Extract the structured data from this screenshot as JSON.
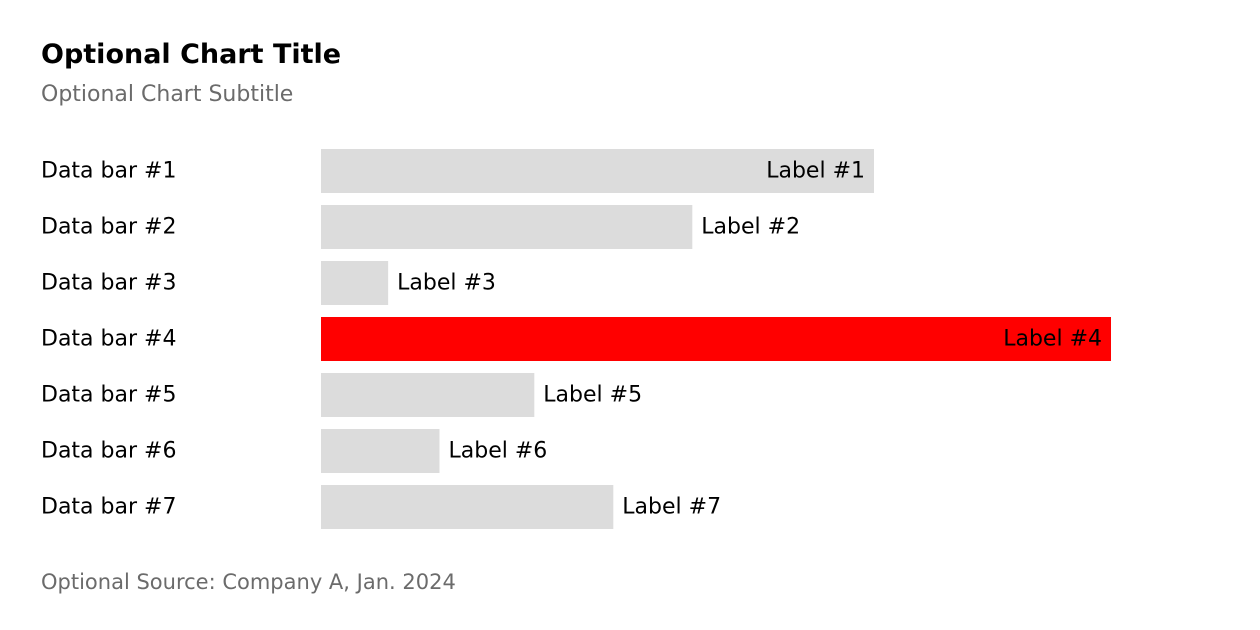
{
  "chart_data": {
    "type": "bar",
    "orientation": "horizontal",
    "title": "Optional Chart Title",
    "subtitle": "Optional Chart Subtitle",
    "source": "Optional Source: Company A, Jan. 2024",
    "categories": [
      "Data bar #1",
      "Data bar #2",
      "Data bar #3",
      "Data bar #4",
      "Data bar #5",
      "Data bar #6",
      "Data bar #7"
    ],
    "values": [
      70,
      47,
      8.5,
      100,
      27,
      15,
      37
    ],
    "labels": [
      "Label #1",
      "Label #2",
      "Label #3",
      "Label #4",
      "Label #5",
      "Label #6",
      "Label #7"
    ],
    "highlight_index": 3,
    "xlim": [
      0,
      100
    ],
    "grid": false,
    "legend": "none",
    "colors": {
      "default": "#dcdcdc",
      "highlight": "#ff0000"
    }
  }
}
